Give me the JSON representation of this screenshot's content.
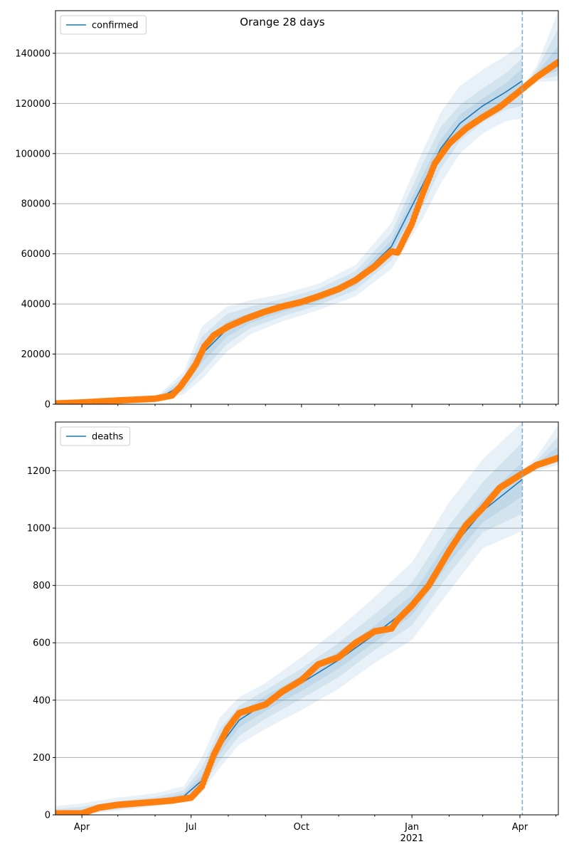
{
  "figure": {
    "suptitle": "Orange 28 days"
  },
  "colors": {
    "line": "#1f77b4",
    "points": "#ff7f0e",
    "band": "#1f77b4",
    "vline": "#7fb0d5",
    "grid": "#b0b0b0",
    "axis": "#000000"
  },
  "x_axis": {
    "tick_labels": [
      {
        "date": "2020-04-01",
        "label": "Apr"
      },
      {
        "date": "2020-07-01",
        "label": "Jul"
      },
      {
        "date": "2020-10-01",
        "label": "Oct"
      },
      {
        "date": "2021-01-01",
        "label": "Jan\n2021"
      },
      {
        "date": "2021-04-01",
        "label": "Apr"
      }
    ],
    "minor_ticks": [
      "2020-05-01",
      "2020-06-01",
      "2020-08-01",
      "2020-09-01",
      "2020-11-01",
      "2020-12-01",
      "2021-02-01",
      "2021-03-01",
      "2021-05-01"
    ]
  },
  "chart_data": [
    {
      "type": "line",
      "legend": [
        "confirmed"
      ],
      "legend_loc": "upper left",
      "grid": "y",
      "xlim": [
        "2020-03-10",
        "2021-05-03"
      ],
      "ylim": [
        0,
        157000
      ],
      "yticks": [
        0,
        20000,
        40000,
        60000,
        80000,
        100000,
        120000,
        140000
      ],
      "forecast_start": "2021-04-03",
      "fit": {
        "x": [
          "2020-03-10",
          "2020-06-01",
          "2020-06-25",
          "2020-07-10",
          "2020-07-31",
          "2020-08-20",
          "2020-09-15",
          "2020-10-15",
          "2020-11-15",
          "2020-12-15",
          "2021-01-10",
          "2021-01-25",
          "2021-02-10",
          "2021-03-01",
          "2021-03-20",
          "2021-04-03"
        ],
        "y": [
          0,
          1500,
          8000,
          20000,
          30000,
          34500,
          38500,
          42500,
          49000,
          63000,
          87500,
          102000,
          112000,
          119000,
          124500,
          129000
        ]
      },
      "bands": [
        {
          "x": [
            "2020-03-10",
            "2020-06-01",
            "2020-06-25",
            "2020-07-10",
            "2020-07-31",
            "2020-08-20",
            "2020-09-15",
            "2020-10-15",
            "2020-11-15",
            "2020-12-15",
            "2021-01-10",
            "2021-01-25",
            "2021-02-10",
            "2021-03-01",
            "2021-03-20",
            "2021-04-03"
          ],
          "lower": [
            0,
            800,
            4000,
            10000,
            21000,
            28000,
            33000,
            37500,
            43000,
            54000,
            74000,
            88000,
            100000,
            108000,
            113000,
            114000
          ],
          "upper": [
            600,
            2500,
            13000,
            31000,
            39000,
            41500,
            44000,
            48000,
            55500,
            72500,
            101000,
            116500,
            127000,
            133500,
            139000,
            144000
          ]
        },
        {
          "x": [
            "2020-03-10",
            "2020-06-01",
            "2020-06-25",
            "2020-07-10",
            "2020-07-31",
            "2020-08-20",
            "2020-09-15",
            "2020-10-15",
            "2020-11-15",
            "2020-12-15",
            "2021-01-10",
            "2021-01-25",
            "2021-02-10",
            "2021-03-01",
            "2021-03-20",
            "2021-04-03"
          ],
          "lower": [
            0,
            1000,
            5500,
            13000,
            24000,
            30500,
            35000,
            39500,
            45500,
            57500,
            79000,
            94000,
            105000,
            112500,
            117500,
            119000
          ],
          "upper": [
            400,
            2100,
            11000,
            27000,
            36000,
            39000,
            42000,
            46000,
            53000,
            68500,
            96000,
            110500,
            119500,
            126000,
            132000,
            138000
          ]
        },
        {
          "x": [
            "2020-03-10",
            "2020-06-01",
            "2020-06-25",
            "2020-07-10",
            "2020-07-31",
            "2020-08-20",
            "2020-09-15",
            "2020-10-15",
            "2020-11-15",
            "2020-12-15",
            "2021-01-10",
            "2021-01-25",
            "2021-02-10",
            "2021-03-01",
            "2021-03-20",
            "2021-04-03"
          ],
          "lower": [
            0,
            1200,
            6800,
            16500,
            27000,
            32500,
            36800,
            41000,
            47300,
            60500,
            83500,
            98500,
            108500,
            116000,
            121000,
            124000
          ],
          "upper": [
            200,
            1800,
            9300,
            23500,
            33000,
            36500,
            40200,
            44000,
            50700,
            65500,
            91500,
            105500,
            115500,
            122000,
            128000,
            134000
          ]
        }
      ],
      "forecast_bands": [
        {
          "x": [
            "2021-04-03",
            "2021-04-15",
            "2021-05-03"
          ],
          "lower": [
            124500,
            128500,
            129000
          ],
          "upper": [
            126500,
            135000,
            157000
          ]
        },
        {
          "x": [
            "2021-04-03",
            "2021-04-15",
            "2021-05-03"
          ],
          "lower": [
            124800,
            129500,
            131000
          ],
          "upper": [
            126000,
            133500,
            150000
          ]
        },
        {
          "x": [
            "2021-04-03",
            "2021-04-15",
            "2021-05-03"
          ],
          "lower": [
            125000,
            130500,
            133000
          ],
          "upper": [
            125500,
            132000,
            143000
          ]
        }
      ],
      "observed": {
        "x": [
          "2020-03-10",
          "2020-04-01",
          "2020-05-01",
          "2020-06-01",
          "2020-06-15",
          "2020-06-22",
          "2020-06-28",
          "2020-07-05",
          "2020-07-12",
          "2020-07-20",
          "2020-08-01",
          "2020-08-15",
          "2020-09-01",
          "2020-09-15",
          "2020-10-01",
          "2020-10-15",
          "2020-11-01",
          "2020-11-15",
          "2020-12-01",
          "2020-12-15",
          "2020-12-20",
          "2021-01-01",
          "2021-01-10",
          "2021-01-20",
          "2021-02-01",
          "2021-02-15",
          "2021-03-01",
          "2021-03-15",
          "2021-04-01",
          "2021-04-15",
          "2021-05-03"
        ],
        "y": [
          300,
          700,
          1500,
          2200,
          3500,
          7000,
          11000,
          16000,
          23000,
          27500,
          31000,
          34000,
          37000,
          39000,
          40800,
          43000,
          46000,
          49500,
          55000,
          61000,
          60500,
          72000,
          84000,
          96000,
          104000,
          110000,
          114500,
          118500,
          125000,
          130500,
          136500
        ]
      }
    },
    {
      "type": "line",
      "legend": [
        "deaths"
      ],
      "legend_loc": "upper left",
      "grid": "y",
      "xlim": [
        "2020-03-10",
        "2021-05-03"
      ],
      "ylim": [
        0,
        1370
      ],
      "yticks": [
        0,
        200,
        400,
        600,
        800,
        1000,
        1200
      ],
      "forecast_start": "2021-04-03",
      "fit": {
        "x": [
          "2020-03-10",
          "2020-04-01",
          "2020-05-01",
          "2020-06-01",
          "2020-06-25",
          "2020-07-10",
          "2020-07-25",
          "2020-08-10",
          "2020-09-01",
          "2020-10-01",
          "2020-11-01",
          "2020-12-01",
          "2021-01-01",
          "2021-02-01",
          "2021-03-01",
          "2021-04-03"
        ],
        "y": [
          0,
          10,
          30,
          45,
          65,
          120,
          240,
          330,
          390,
          460,
          540,
          630,
          730,
          920,
          1060,
          1170
        ]
      },
      "bands": [
        {
          "x": [
            "2020-03-10",
            "2020-04-01",
            "2020-05-01",
            "2020-06-01",
            "2020-06-25",
            "2020-07-10",
            "2020-07-25",
            "2020-08-10",
            "2020-09-01",
            "2020-10-01",
            "2020-11-01",
            "2020-12-01",
            "2021-01-01",
            "2021-02-01",
            "2021-03-01",
            "2021-04-03"
          ],
          "lower": [
            0,
            2,
            15,
            30,
            45,
            80,
            165,
            245,
            300,
            365,
            440,
            530,
            610,
            780,
            930,
            990
          ],
          "upper": [
            30,
            40,
            60,
            75,
            100,
            200,
            340,
            410,
            460,
            550,
            650,
            760,
            880,
            1090,
            1240,
            1370
          ]
        },
        {
          "x": [
            "2020-03-10",
            "2020-04-01",
            "2020-05-01",
            "2020-06-01",
            "2020-06-25",
            "2020-07-10",
            "2020-07-25",
            "2020-08-10",
            "2020-09-01",
            "2020-10-01",
            "2020-11-01",
            "2020-12-01",
            "2021-01-01",
            "2021-02-01",
            "2021-03-01",
            "2021-04-03"
          ],
          "lower": [
            0,
            4,
            20,
            35,
            52,
            95,
            190,
            275,
            335,
            405,
            480,
            575,
            660,
            840,
            985,
            1050
          ],
          "upper": [
            20,
            28,
            48,
            62,
            85,
            165,
            300,
            380,
            435,
            510,
            600,
            700,
            810,
            1010,
            1160,
            1300
          ]
        },
        {
          "x": [
            "2020-03-10",
            "2020-04-01",
            "2020-05-01",
            "2020-06-01",
            "2020-06-25",
            "2020-07-10",
            "2020-07-25",
            "2020-08-10",
            "2020-09-01",
            "2020-10-01",
            "2020-11-01",
            "2020-12-01",
            "2021-01-01",
            "2021-02-01",
            "2021-03-01",
            "2021-04-03"
          ],
          "lower": [
            0,
            6,
            25,
            40,
            58,
            108,
            215,
            305,
            362,
            432,
            510,
            602,
            695,
            880,
            1020,
            1110
          ],
          "upper": [
            10,
            18,
            38,
            52,
            75,
            140,
            270,
            355,
            415,
            485,
            570,
            660,
            765,
            960,
            1100,
            1230
          ]
        }
      ],
      "forecast_bands": [
        {
          "x": [
            "2021-04-03",
            "2021-04-15",
            "2021-05-03"
          ],
          "lower": [
            1180,
            1200,
            1220
          ],
          "upper": [
            1200,
            1250,
            1360
          ]
        },
        {
          "x": [
            "2021-04-03",
            "2021-04-15",
            "2021-05-03"
          ],
          "lower": [
            1185,
            1205,
            1230
          ],
          "upper": [
            1195,
            1235,
            1320
          ]
        },
        {
          "x": [
            "2021-04-03",
            "2021-04-15",
            "2021-05-03"
          ],
          "lower": [
            1188,
            1210,
            1238
          ],
          "upper": [
            1192,
            1225,
            1285
          ]
        }
      ],
      "observed": {
        "x": [
          "2020-03-10",
          "2020-04-01",
          "2020-04-15",
          "2020-05-01",
          "2020-06-01",
          "2020-06-15",
          "2020-07-01",
          "2020-07-10",
          "2020-07-20",
          "2020-07-31",
          "2020-08-10",
          "2020-09-01",
          "2020-09-15",
          "2020-10-01",
          "2020-10-15",
          "2020-11-01",
          "2020-11-15",
          "2020-12-01",
          "2020-12-15",
          "2020-12-20",
          "2021-01-01",
          "2021-01-15",
          "2021-02-01",
          "2021-02-15",
          "2021-03-01",
          "2021-03-15",
          "2021-04-01",
          "2021-04-15",
          "2021-05-03"
        ],
        "y": [
          5,
          5,
          25,
          35,
          45,
          50,
          60,
          100,
          210,
          300,
          355,
          385,
          430,
          470,
          525,
          550,
          600,
          640,
          650,
          680,
          730,
          800,
          920,
          1010,
          1070,
          1140,
          1185,
          1220,
          1245
        ]
      }
    }
  ]
}
